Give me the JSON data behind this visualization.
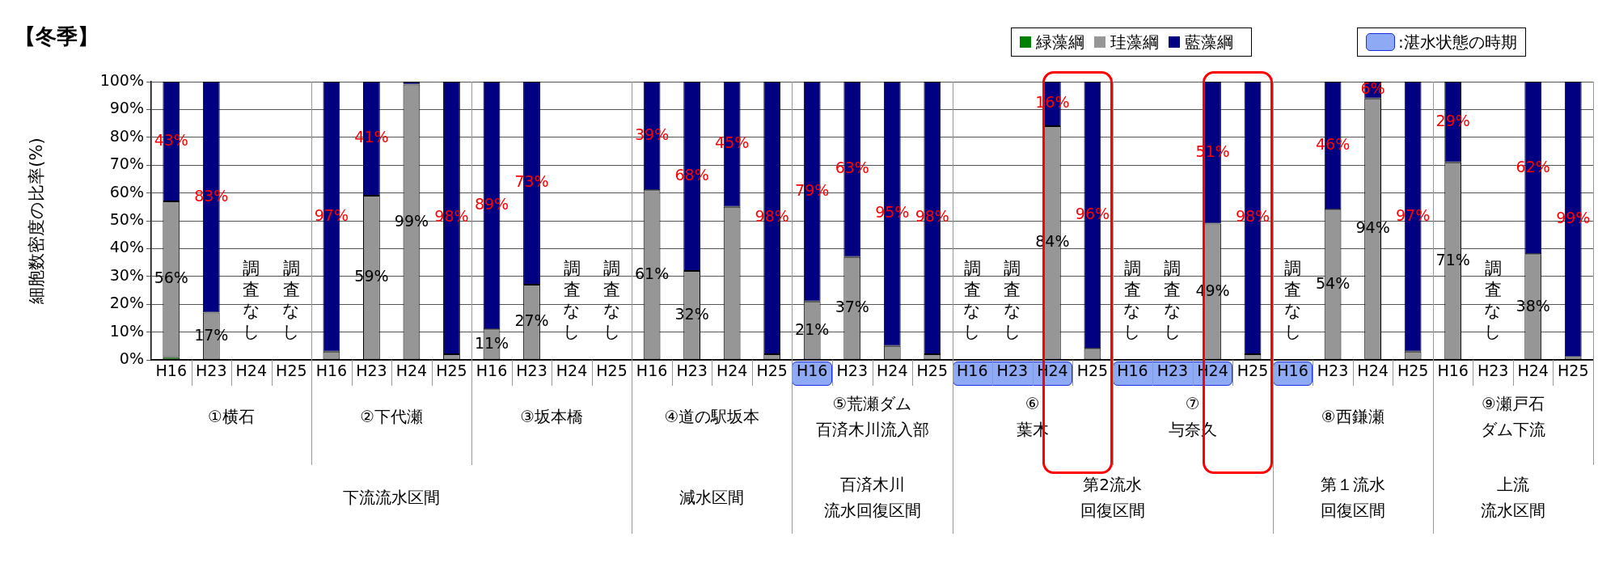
{
  "chart_data": {
    "type": "bar",
    "stacked": true,
    "title": "【冬季】",
    "ylabel": "細胞数密度の比率(%)",
    "categories": [
      "H16",
      "H23",
      "H24",
      "H25",
      "H16",
      "H23",
      "H24",
      "H25",
      "H16",
      "H23",
      "H24",
      "H25",
      "H16",
      "H23",
      "H24",
      "H25",
      "H16",
      "H23",
      "H24",
      "H25",
      "H16",
      "H23",
      "H24",
      "H25",
      "H16",
      "H23",
      "H24",
      "H25",
      "H16",
      "H23",
      "H24",
      "H25",
      "H16",
      "H23",
      "H24",
      "H25"
    ],
    "ylim": [
      0,
      100
    ],
    "yticks": [
      {
        "value": 0,
        "label": "0%"
      },
      {
        "value": 10,
        "label": "10%"
      },
      {
        "value": 20,
        "label": "20%"
      },
      {
        "value": 30,
        "label": "30%"
      },
      {
        "value": 40,
        "label": "40%"
      },
      {
        "value": 50,
        "label": "50%"
      },
      {
        "value": 60,
        "label": "60%"
      },
      {
        "value": 70,
        "label": "70%"
      },
      {
        "value": 80,
        "label": "80%"
      },
      {
        "value": 90,
        "label": "90%"
      },
      {
        "value": 100,
        "label": "100%"
      }
    ],
    "grid": "y",
    "legend": "top right",
    "series": [
      {
        "name": "緑藻綱",
        "color": "#008000",
        "values": [
          1,
          0,
          null,
          null,
          0,
          0,
          0,
          0,
          0,
          0,
          null,
          null,
          0,
          0,
          0,
          0,
          0,
          0,
          0,
          0,
          null,
          null,
          0,
          0,
          null,
          null,
          0,
          0,
          null,
          0,
          0,
          0,
          0,
          null,
          0,
          0
        ]
      },
      {
        "name": "珪藻綱",
        "color": "#969696",
        "values": [
          56,
          17,
          null,
          null,
          3,
          59,
          99,
          2,
          11,
          27,
          null,
          null,
          61,
          32,
          55,
          2,
          21,
          37,
          5,
          2,
          null,
          null,
          84,
          4,
          null,
          null,
          49,
          2,
          null,
          54,
          94,
          3,
          71,
          null,
          38,
          1
        ],
        "value_labels": [
          "56%",
          "17%",
          null,
          null,
          null,
          "59%",
          "99%",
          null,
          "11%",
          "27%",
          null,
          null,
          "61%",
          "32%",
          null,
          null,
          "21%",
          "37%",
          null,
          null,
          null,
          null,
          "84%",
          null,
          null,
          null,
          "49%",
          null,
          null,
          "54%",
          "94%",
          null,
          "71%",
          null,
          "38%",
          null
        ]
      },
      {
        "name": "藍藻綱",
        "color": "#000080",
        "values": [
          43,
          83,
          null,
          null,
          97,
          41,
          1,
          98,
          89,
          73,
          null,
          null,
          39,
          68,
          45,
          98,
          79,
          63,
          95,
          98,
          null,
          null,
          16,
          96,
          null,
          null,
          51,
          98,
          null,
          46,
          6,
          97,
          29,
          null,
          62,
          99
        ],
        "value_labels": [
          "43%",
          "83%",
          null,
          null,
          "97%",
          "41%",
          null,
          "98%",
          "89%",
          "73%",
          null,
          null,
          "39%",
          "68%",
          "45%",
          "98%",
          "79%",
          "63%",
          "95%",
          "98%",
          null,
          null,
          "16%",
          "96%",
          null,
          null,
          "51%",
          "98%",
          null,
          "46%",
          "6%",
          "97%",
          "29%",
          null,
          "62%",
          "99%"
        ]
      }
    ],
    "annotations": [
      "調査なし",
      "調査なし",
      "調査なし",
      "調査なし",
      "調査なし",
      "調査なし",
      "調査なし",
      "調査なし",
      "調査なし",
      "調査なし",
      "①横石",
      "②下代瀬",
      "③坂本橋",
      "④道の駅坂本",
      "⑤荒瀬ダム百済木川流入部",
      "⑥葉木",
      "⑦与奈久",
      "⑧西鎌瀬",
      "⑨瀬戸石ダム下流",
      "下流流水区間",
      "減水区間",
      "百済木川流水回復区間",
      "第2流水回復区間",
      "第１流水回復区間",
      "上流流水区間",
      ":湛水状態の時期"
    ]
  }
}
